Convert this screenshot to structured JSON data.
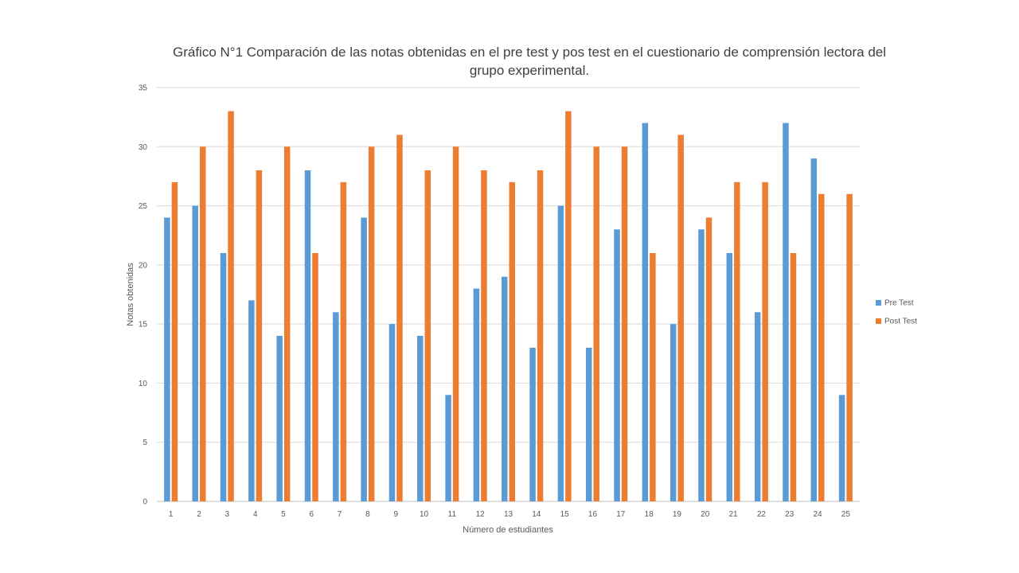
{
  "chart_data": {
    "type": "bar",
    "title": "Gráfico N°1 Comparación de las notas obtenidas en el pre test y pos test en el cuestionario de comprensión lectora del grupo experimental.",
    "xlabel": "Número de estudiantes",
    "ylabel": "Notas obtenidas",
    "ylim": [
      0,
      35
    ],
    "yticks": [
      0,
      5,
      10,
      15,
      20,
      25,
      30,
      35
    ],
    "grid": true,
    "legend_position": "right",
    "categories": [
      "1",
      "2",
      "3",
      "4",
      "5",
      "6",
      "7",
      "8",
      "9",
      "10",
      "11",
      "12",
      "13",
      "14",
      "15",
      "16",
      "17",
      "18",
      "19",
      "20",
      "21",
      "22",
      "23",
      "24",
      "25"
    ],
    "series": [
      {
        "name": "Pre Test",
        "color": "#5B9BD5",
        "values": [
          24,
          25,
          21,
          17,
          14,
          28,
          16,
          24,
          15,
          14,
          9,
          18,
          19,
          13,
          25,
          13,
          23,
          32,
          15,
          23,
          21,
          16,
          32,
          29,
          9
        ]
      },
      {
        "name": "Post Test",
        "color": "#ED7D31",
        "values": [
          27,
          30,
          33,
          28,
          30,
          21,
          27,
          30,
          31,
          28,
          30,
          28,
          27,
          28,
          33,
          30,
          30,
          21,
          31,
          24,
          27,
          27,
          21,
          26,
          26
        ]
      }
    ]
  }
}
